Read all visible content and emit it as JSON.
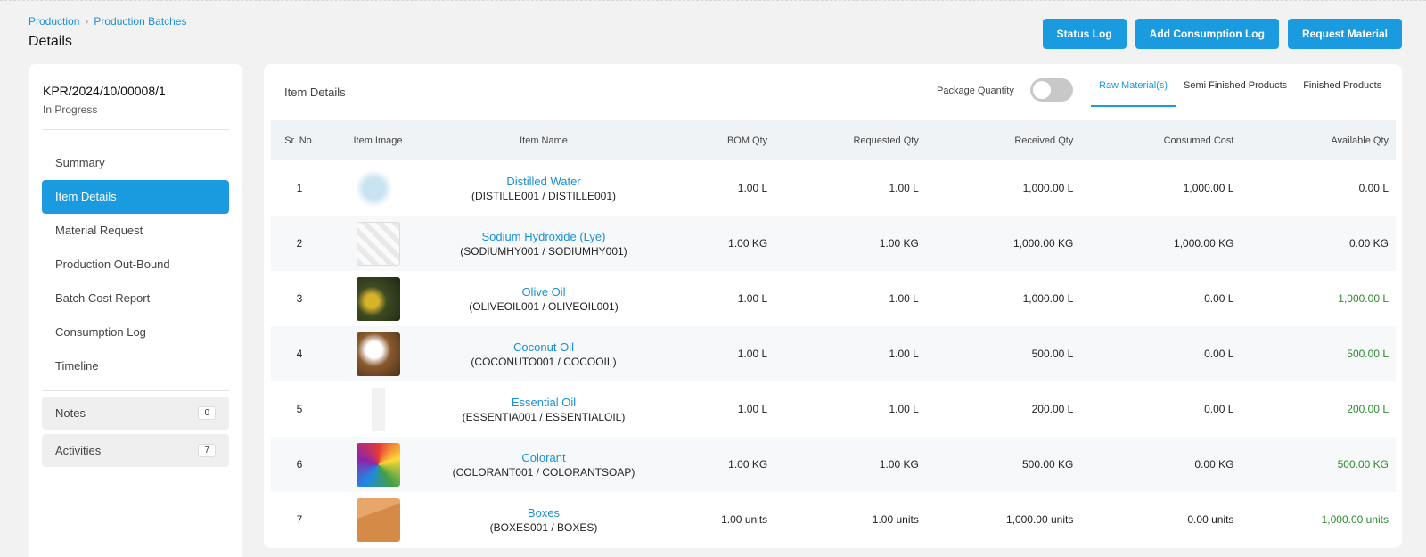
{
  "breadcrumb": {
    "root": "Production",
    "current": "Production Batches"
  },
  "page": {
    "title": "Details"
  },
  "actions": {
    "status_log": "Status Log",
    "add_consumption_log": "Add Consumption Log",
    "request_material": "Request Material"
  },
  "batch": {
    "code": "KPR/2024/10/00008/1",
    "status": "In Progress"
  },
  "sidebar": {
    "items": [
      {
        "label": "Summary"
      },
      {
        "label": "Item Details",
        "active": true
      },
      {
        "label": "Material Request"
      },
      {
        "label": "Production Out-Bound"
      },
      {
        "label": "Batch Cost Report"
      },
      {
        "label": "Consumption Log"
      },
      {
        "label": "Timeline"
      }
    ],
    "notes": {
      "label": "Notes",
      "count": "0"
    },
    "activities": {
      "label": "Activities",
      "count": "7"
    }
  },
  "main": {
    "title": "Item Details",
    "package_quantity_label": "Package Quantity",
    "package_quantity_on": false,
    "tabs": [
      "Raw Material(s)",
      "Semi Finished Products",
      "Finished Products"
    ]
  },
  "table": {
    "headers": [
      "Sr. No.",
      "Item Image",
      "Item Name",
      "BOM Qty",
      "Requested Qty",
      "Received Qty",
      "Consumed Cost",
      "Available Qty"
    ],
    "rows": [
      {
        "sr": "1",
        "img": "water-icon",
        "name": "Distilled Water",
        "code": "(DISTILLE001 / DISTILLE001)",
        "bom": "1.00 L",
        "requested": "1.00 L",
        "received": "1,000.00 L",
        "consumed": "1,000.00 L",
        "available": "0.00 L",
        "available_green": false
      },
      {
        "sr": "2",
        "img": "lye-icon",
        "name": "Sodium Hydroxide (Lye)",
        "code": "(SODIUMHY001 / SODIUMHY001)",
        "bom": "1.00 KG",
        "requested": "1.00 KG",
        "received": "1,000.00 KG",
        "consumed": "1,000.00 KG",
        "available": "0.00 KG",
        "available_green": false
      },
      {
        "sr": "3",
        "img": "olive-oil-icon",
        "name": "Olive Oil",
        "code": "(OLIVEOIL001 / OLIVEOIL001)",
        "bom": "1.00 L",
        "requested": "1.00 L",
        "received": "1,000.00 L",
        "consumed": "0.00 L",
        "available": "1,000.00 L",
        "available_green": true
      },
      {
        "sr": "4",
        "img": "coconut-oil-icon",
        "name": "Coconut Oil",
        "code": "(COCONUTO001 / COCOOIL)",
        "bom": "1.00 L",
        "requested": "1.00 L",
        "received": "500.00 L",
        "consumed": "0.00 L",
        "available": "500.00 L",
        "available_green": true
      },
      {
        "sr": "5",
        "img": "essential-oil-icon",
        "name": "Essential Oil",
        "code": "(ESSENTIA001 / ESSENTIALOIL)",
        "bom": "1.00 L",
        "requested": "1.00 L",
        "received": "200.00 L",
        "consumed": "0.00 L",
        "available": "200.00 L",
        "available_green": true
      },
      {
        "sr": "6",
        "img": "colorant-icon",
        "name": "Colorant",
        "code": "(COLORANT001 / COLORANTSOAP)",
        "bom": "1.00 KG",
        "requested": "1.00 KG",
        "received": "500.00 KG",
        "consumed": "0.00 KG",
        "available": "500.00 KG",
        "available_green": true
      },
      {
        "sr": "7",
        "img": "box-icon",
        "name": "Boxes",
        "code": "(BOXES001 / BOXES)",
        "bom": "1.00 units",
        "requested": "1.00 units",
        "received": "1,000.00 units",
        "consumed": "0.00 units",
        "available": "1,000.00 units",
        "available_green": true
      }
    ]
  },
  "colors": {
    "accent": "#1a9be0",
    "link": "#1a8fd6",
    "available_green": "#2e8b2e"
  }
}
